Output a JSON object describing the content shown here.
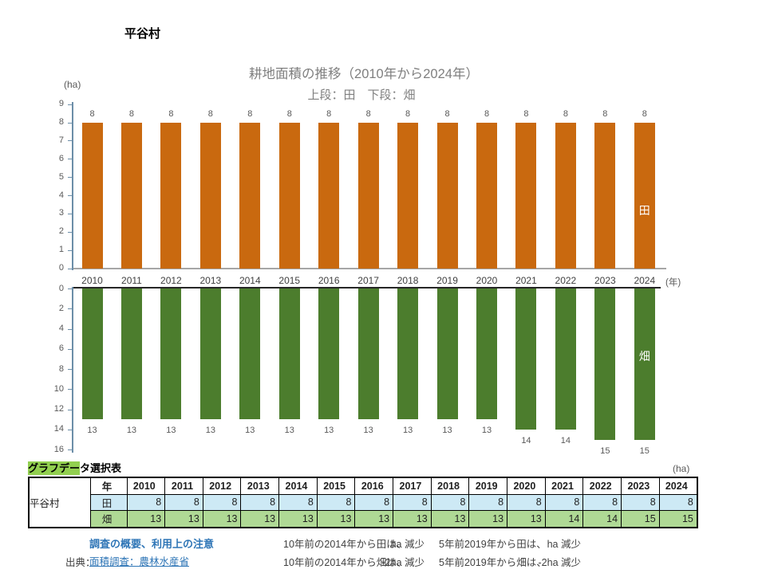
{
  "village": "平谷村",
  "chart_data": {
    "type": "bar",
    "title": "耕地面積の推移（2010年から2024年）",
    "subtitle": "上段：田　下段：畑",
    "y_unit_label": "(ha)",
    "x_unit_label": "(年)",
    "categories": [
      "2010",
      "2011",
      "2012",
      "2013",
      "2014",
      "2015",
      "2016",
      "2017",
      "2018",
      "2019",
      "2020",
      "2021",
      "2022",
      "2023",
      "2024"
    ],
    "series": [
      {
        "name": "田",
        "position": "upper",
        "color": "#c9690f",
        "values": [
          8,
          8,
          8,
          8,
          8,
          8,
          8,
          8,
          8,
          8,
          8,
          8,
          8,
          8,
          8
        ]
      },
      {
        "name": "畑",
        "position": "lower-inverted",
        "color": "#4c7d2d",
        "values": [
          13,
          13,
          13,
          13,
          13,
          13,
          13,
          13,
          13,
          13,
          13,
          14,
          14,
          15,
          15
        ]
      }
    ],
    "upper_axis": {
      "ticks": [
        9,
        8,
        7,
        6,
        5,
        4,
        3,
        2,
        1,
        0
      ],
      "max": 9,
      "direction": "up"
    },
    "lower_axis": {
      "ticks": [
        0,
        2,
        4,
        6,
        8,
        10,
        12,
        14,
        16
      ],
      "max": 16,
      "direction": "down"
    },
    "grid": false,
    "legend": "series name shown in white on last bar"
  },
  "table": {
    "title_highlight": "グラフデー",
    "title_rest": "タ選択表",
    "unit_label": "(ha)",
    "corner_label": "平谷村",
    "year_header": "年",
    "columns": [
      "2010",
      "2011",
      "2012",
      "2013",
      "2014",
      "2015",
      "2016",
      "2017",
      "2018",
      "2019",
      "2020",
      "2021",
      "2022",
      "2023",
      "2024"
    ],
    "rows": [
      {
        "label": "田",
        "bg": "#cde9f5",
        "values": [
          8,
          8,
          8,
          8,
          8,
          8,
          8,
          8,
          8,
          8,
          8,
          8,
          8,
          8,
          8
        ]
      },
      {
        "label": "畑",
        "bg": "#afd995",
        "values": [
          13,
          13,
          13,
          13,
          13,
          13,
          13,
          13,
          13,
          13,
          13,
          14,
          14,
          15,
          15
        ]
      }
    ]
  },
  "footer": {
    "survey_link": "調査の概要、利用上の注意",
    "source_label": "出典：",
    "source_link": "面積調査：農林水産省",
    "notes": [
      {
        "label": "10年前の2014年から田は、",
        "value": "ha 減少"
      },
      {
        "label": "5年前2019年から田は、",
        "value": "ha 減少"
      },
      {
        "label": "10年前の2014年から畑は、",
        "value": "-2ha 減少"
      },
      {
        "label": "5年前2019年から畑は、",
        "value": "-2ha 減少"
      }
    ]
  },
  "colors": {
    "bar_upper": "#c9690f",
    "bar_lower": "#4c7d2d",
    "axis_line": "#6c8ea8",
    "baseline_gray": "#a6a6a6",
    "zero_line_black": "#262626",
    "table_row_blue": "#cde9f5",
    "table_row_green": "#afd995",
    "title_highlight_green": "#92d050",
    "link_blue": "#2e75b6",
    "title_gray": "#7f7f7f",
    "axis_text": "#595959",
    "text_dark": "#404040"
  }
}
